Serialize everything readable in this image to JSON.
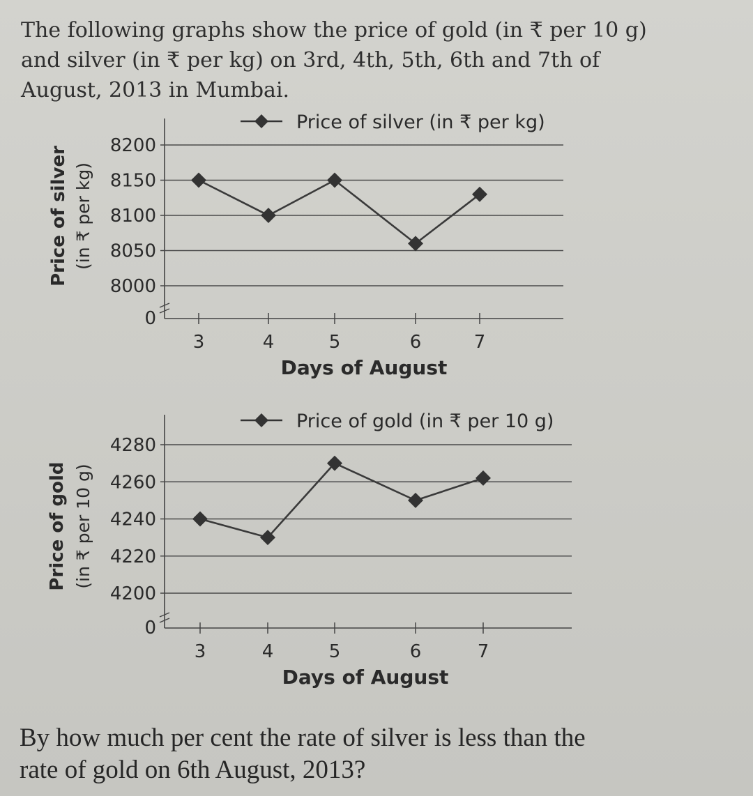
{
  "intro": {
    "lines": [
      "The following graphs show the price of gold (in ₹ per 10 g)",
      "and silver (in ₹ per kg) on 3rd, 4th, 5th, 6th and 7th of",
      "August, 2013 in Mumbai."
    ]
  },
  "question": {
    "lines": [
      "By how much per cent the rate of silver is less than the",
      "rate of gold on 6th August, 2013?"
    ]
  },
  "chart_data": [
    {
      "type": "line",
      "title": "",
      "legend": "Price of silver (in ₹ per kg)",
      "legend_position": "top",
      "ylabel": "Price of silver",
      "ylabel_unit": "(in ₹ per kg)",
      "xlabel": "Days of August",
      "x": [
        3,
        4,
        5,
        6,
        7
      ],
      "x_tick_labels": [
        "3",
        "4",
        "5",
        "6",
        "7"
      ],
      "y_tick_labels": [
        "0",
        "8000",
        "8050",
        "8100",
        "8150",
        "8200"
      ],
      "y_ticks": [
        8000,
        8050,
        8100,
        8150,
        8200
      ],
      "ylim": [
        8000,
        8200
      ],
      "axis_break": true,
      "grid": true,
      "series": [
        {
          "name": "Price of silver (in ₹ per kg)",
          "values": [
            8150,
            8100,
            8150,
            8060,
            8130
          ],
          "color": "#3a3a3a"
        }
      ]
    },
    {
      "type": "line",
      "title": "",
      "legend": "Price of gold (in ₹ per 10 g)",
      "legend_position": "top",
      "ylabel": "Price of gold",
      "ylabel_unit": "(in ₹ per 10 g)",
      "xlabel": "Days of August",
      "x": [
        3,
        4,
        5,
        6,
        7
      ],
      "x_tick_labels": [
        "3",
        "4",
        "5",
        "6",
        "7"
      ],
      "y_tick_labels": [
        "0",
        "4200",
        "4220",
        "4240",
        "4260",
        "4280"
      ],
      "y_ticks": [
        4200,
        4220,
        4240,
        4260,
        4280
      ],
      "ylim": [
        4200,
        4280
      ],
      "axis_break": true,
      "grid": true,
      "series": [
        {
          "name": "Price of gold (in ₹ per 10 g)",
          "values": [
            4240,
            4230,
            4270,
            4250,
            4262
          ],
          "color": "#3a3a3a"
        }
      ]
    }
  ]
}
